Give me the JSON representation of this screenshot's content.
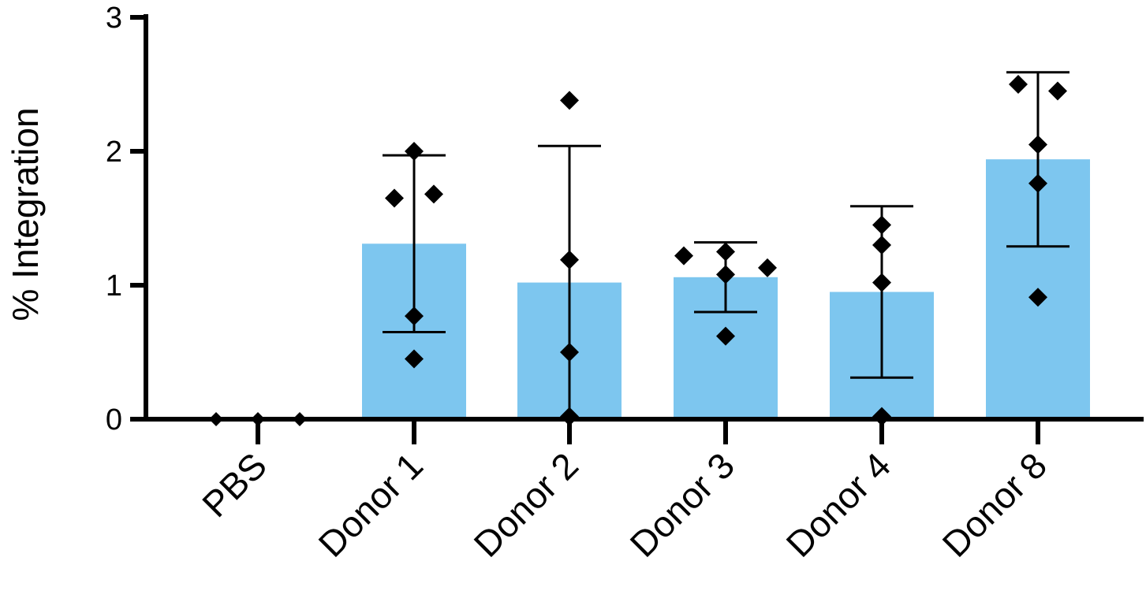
{
  "chart_data": {
    "type": "bar",
    "title": "",
    "xlabel": "",
    "ylabel": "% Integration",
    "ylim": [
      0,
      3
    ],
    "yticks": [
      0,
      1,
      2,
      3
    ],
    "grid": false,
    "bar_color": "#7dc6ef",
    "point_color": "#000000",
    "categories": [
      "PBS",
      "Donor 1",
      "Donor 2",
      "Donor 3",
      "Donor 4",
      "Donor 8"
    ],
    "values": [
      0,
      1.31,
      1.02,
      1.06,
      0.95,
      1.94
    ],
    "error_upper": [
      0,
      1.97,
      2.04,
      1.32,
      1.59,
      2.59
    ],
    "error_lower": [
      0,
      0.65,
      0,
      0.8,
      0.31,
      1.29
    ],
    "points": [
      [
        0,
        0,
        0
      ],
      [
        2.0,
        1.65,
        1.68,
        0.77,
        0.45
      ],
      [
        2.38,
        1.19,
        0.5,
        0.02
      ],
      [
        1.22,
        1.25,
        1.13,
        1.08,
        0.62
      ],
      [
        1.45,
        1.3,
        1.02,
        0.02
      ],
      [
        2.5,
        2.45,
        2.05,
        1.76,
        0.91
      ]
    ]
  }
}
